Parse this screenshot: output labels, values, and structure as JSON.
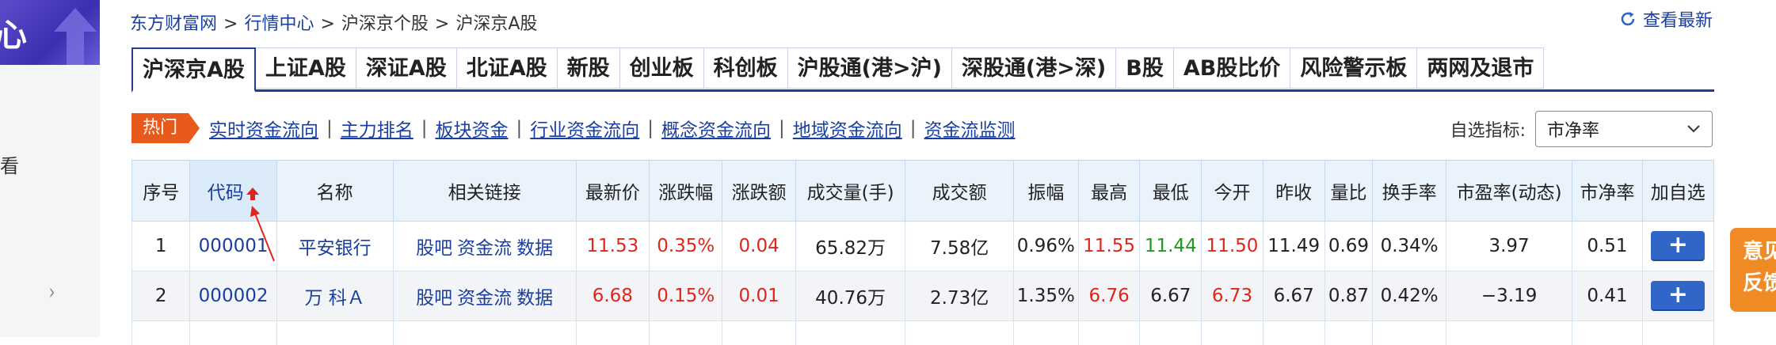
{
  "side": {
    "logo_char": "心",
    "side_char": "看",
    "chevron": "›"
  },
  "breadcrumb": {
    "items": [
      "东方财富网",
      "行情中心",
      "沪深京个股",
      "沪深京A股"
    ],
    "separator": ">"
  },
  "refresh": {
    "label": "查看最新"
  },
  "tabs": [
    {
      "label": "沪深京A股",
      "active": true
    },
    {
      "label": "上证A股"
    },
    {
      "label": "深证A股"
    },
    {
      "label": "北证A股"
    },
    {
      "label": "新股"
    },
    {
      "label": "创业板"
    },
    {
      "label": "科创板"
    },
    {
      "label": "沪股通(港>沪)"
    },
    {
      "label": "深股通(港>深)"
    },
    {
      "label": "B股"
    },
    {
      "label": "AB股比价"
    },
    {
      "label": "风险警示板"
    },
    {
      "label": "两网及退市"
    }
  ],
  "hot": {
    "badge": "热门",
    "links": [
      "实时资金流向",
      "主力排名",
      "板块资金",
      "行业资金流向",
      "概念资金流向",
      "地域资金流向",
      "资金流监测"
    ]
  },
  "indicator": {
    "label": "自选指标:",
    "selected": "市净率"
  },
  "table": {
    "headers": [
      "序号",
      "代码",
      "名称",
      "相关链接",
      "最新价",
      "涨跌幅",
      "涨跌额",
      "成交量(手)",
      "成交额",
      "振幅",
      "最高",
      "最低",
      "今开",
      "昨收",
      "量比",
      "换手率",
      "市盈率(动态)",
      "市净率",
      "加自选"
    ],
    "rows": [
      {
        "idx": "1",
        "code": "000001",
        "name": "平安银行",
        "links": [
          "股吧",
          "资金流",
          "数据"
        ],
        "price": "11.53",
        "pct": "0.35%",
        "chg": "0.04",
        "vol": "65.82万",
        "amount": "7.58亿",
        "amp": "0.96%",
        "high": "11.55",
        "low": "11.44",
        "open": "11.50",
        "prev": "11.49",
        "vr": "0.69",
        "turnover": "0.34%",
        "pe": "3.97",
        "pb": "0.51",
        "add": "+"
      },
      {
        "idx": "2",
        "code": "000002",
        "name": "万 科Ａ",
        "links": [
          "股吧",
          "资金流",
          "数据"
        ],
        "price": "6.68",
        "pct": "0.15%",
        "chg": "0.01",
        "vol": "40.76万",
        "amount": "2.73亿",
        "amp": "1.35%",
        "high": "6.76",
        "low": "6.67",
        "open": "6.73",
        "prev": "6.67",
        "vr": "0.87",
        "turnover": "0.42%",
        "pe": "−3.19",
        "pb": "0.41",
        "add": "+"
      }
    ]
  },
  "feedback": {
    "line1": "意见",
    "line2": "反馈"
  },
  "colors": {
    "up": "#e0261a",
    "down": "#1e9a1e",
    "link": "#1a3fa0",
    "tab_border": "#1f3f8f",
    "hot": "#e85a1c"
  }
}
